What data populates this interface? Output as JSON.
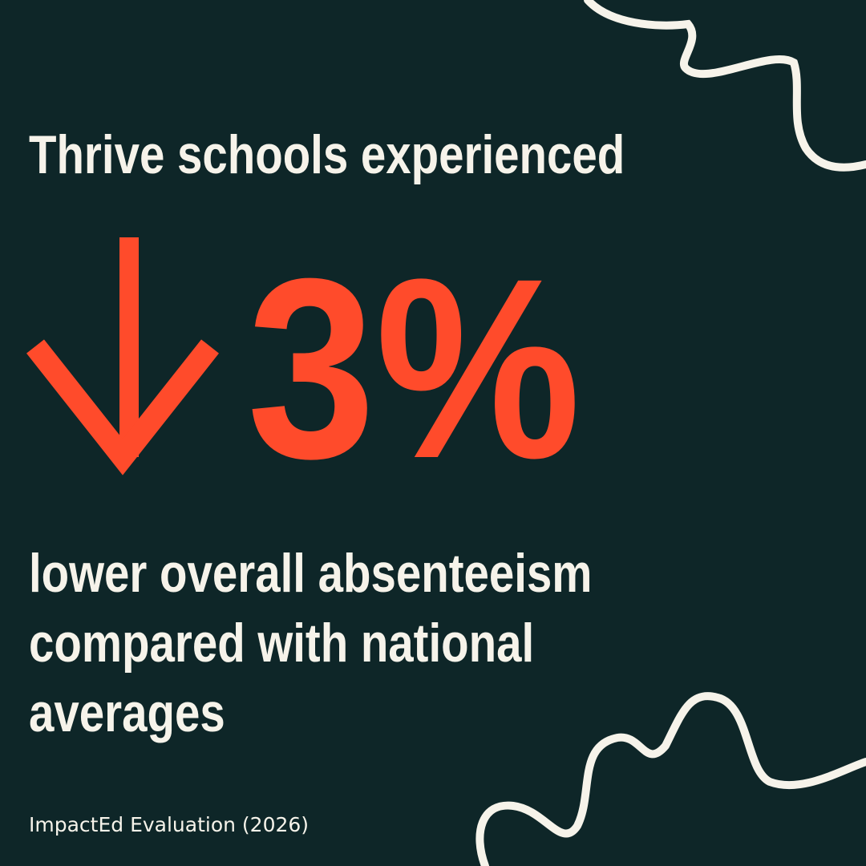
{
  "headline": "Thrive schools experienced",
  "stat": "3%",
  "body_lines": [
    "lower overall absenteeism",
    "compared with national",
    "averages"
  ],
  "source": "ImpactEd Evaluation (2026)"
}
